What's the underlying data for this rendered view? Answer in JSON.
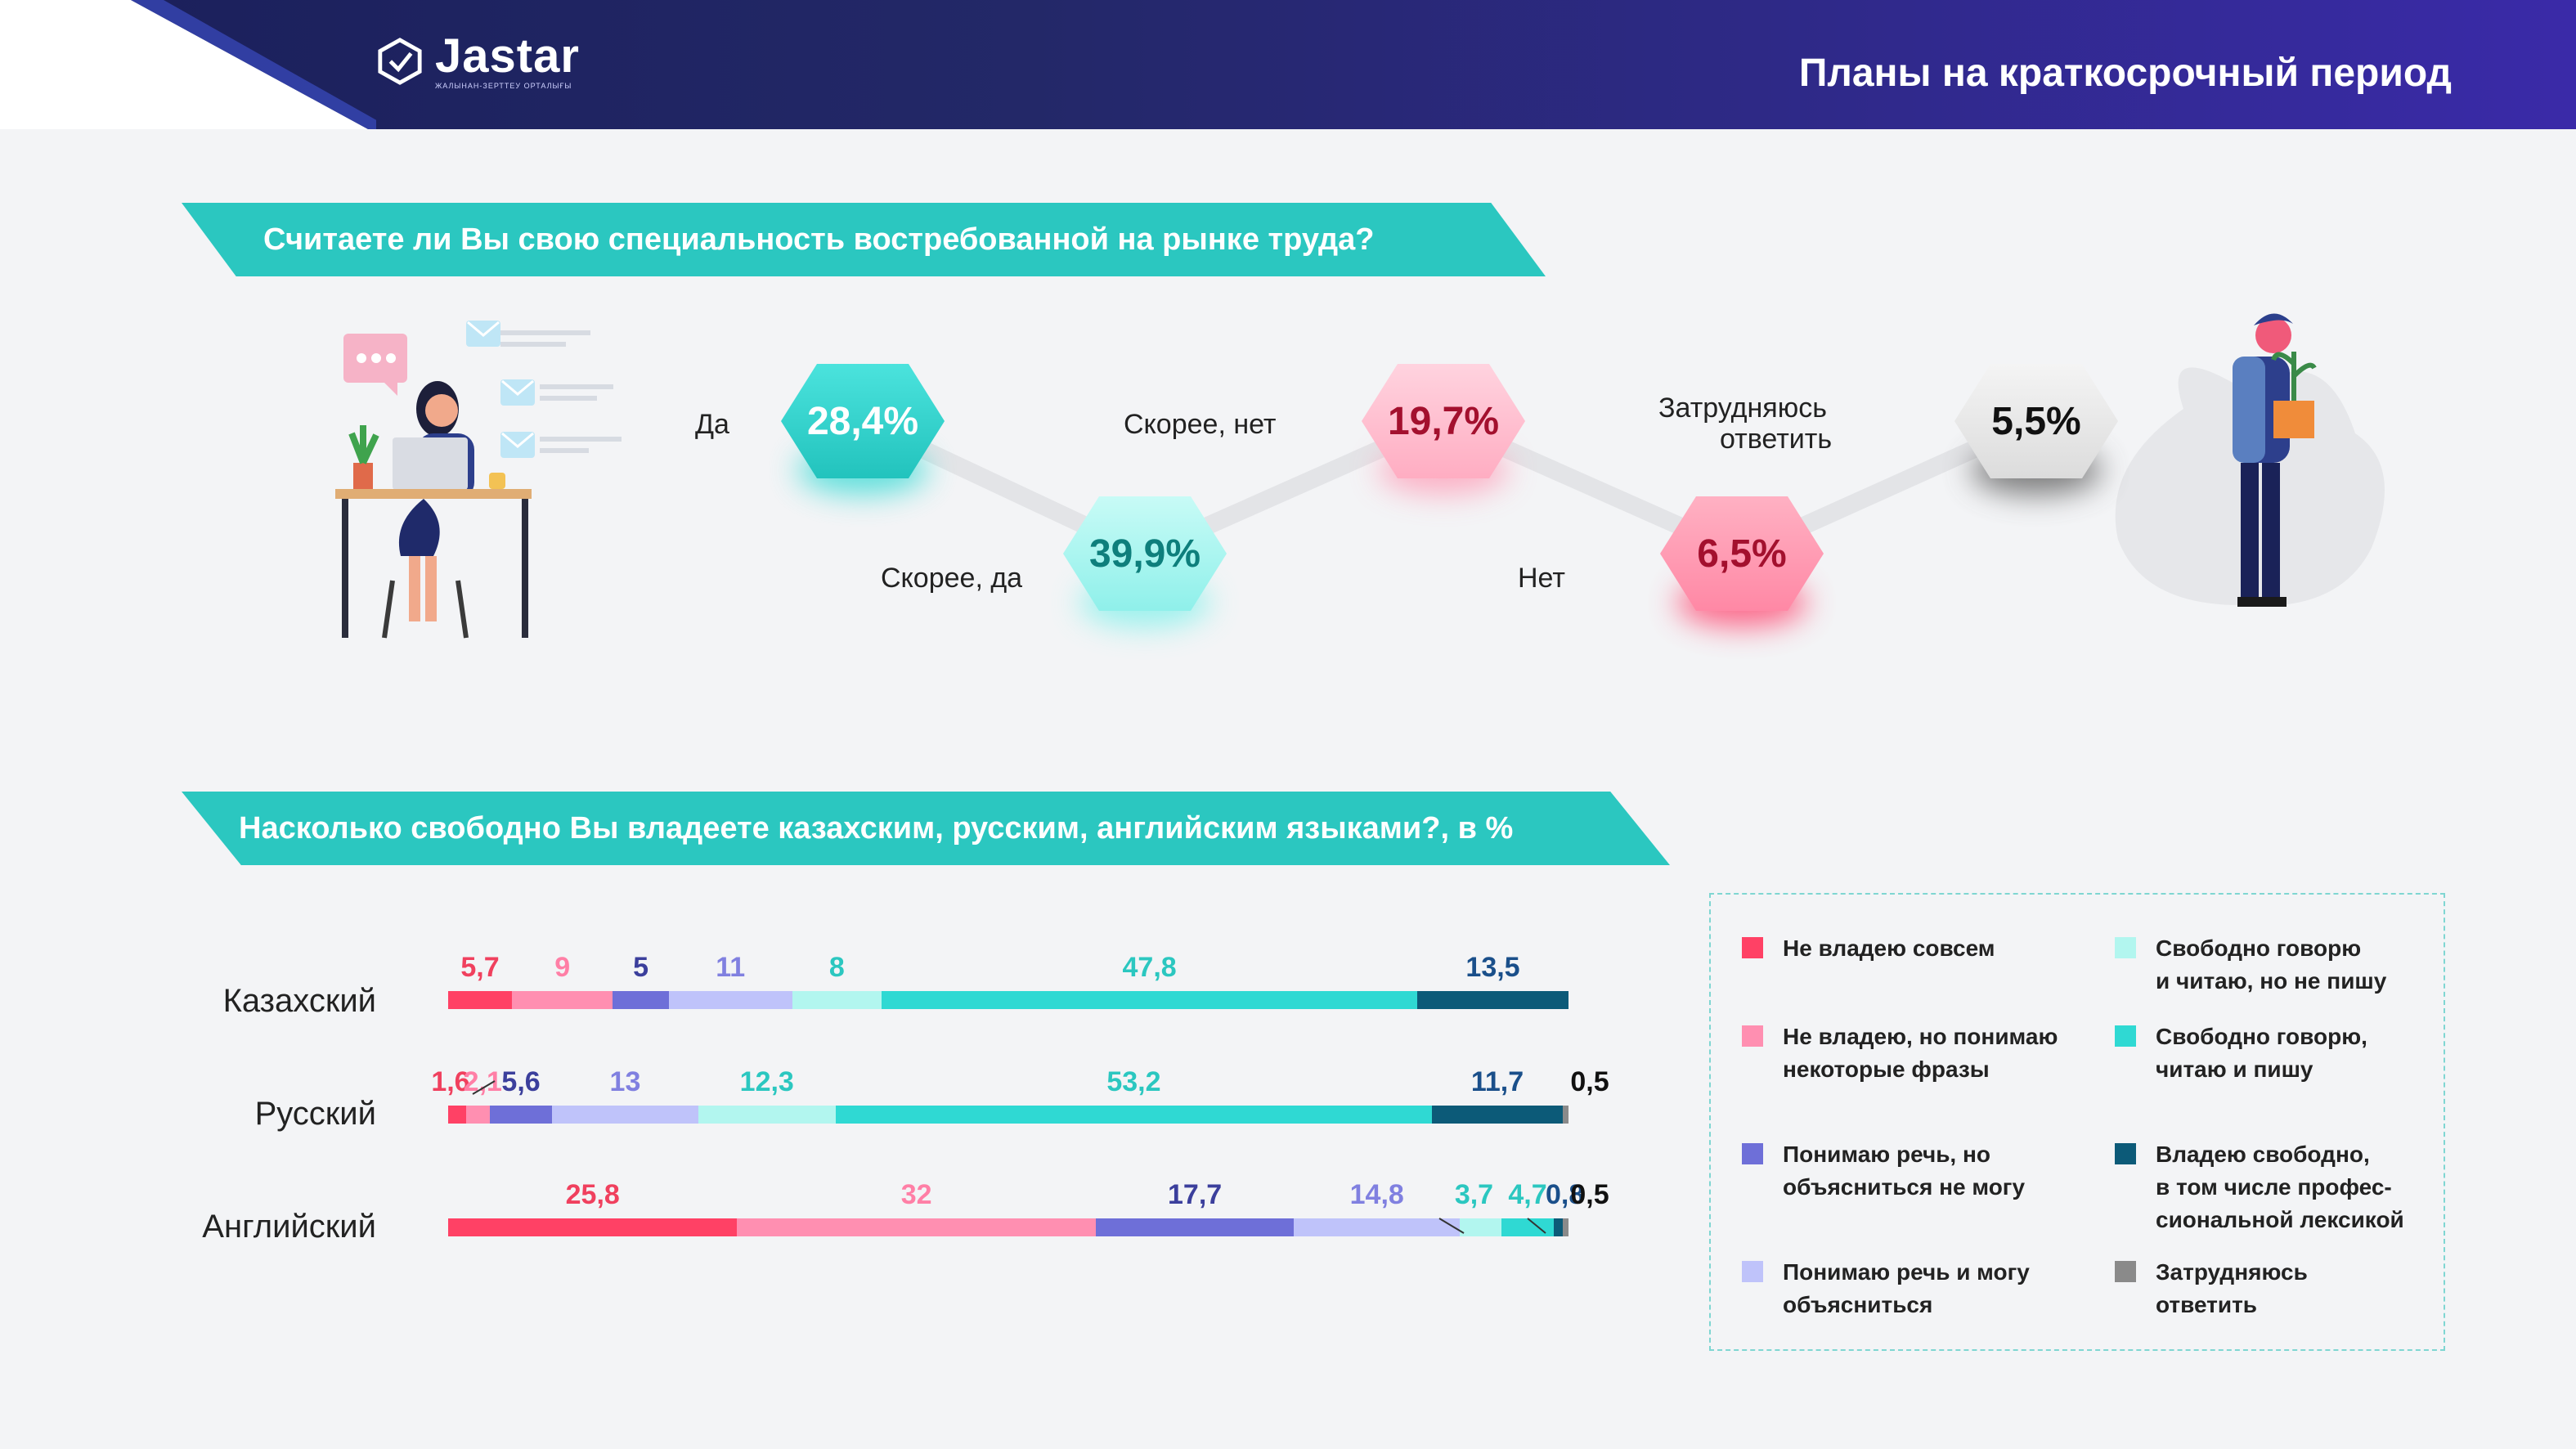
{
  "header": {
    "brand": "Jastar",
    "brand_sub": "ЖАЛЫНАН-ЗЕРТТЕУ ОРТАЛЫҒЫ",
    "title": "Планы на краткосрочный период"
  },
  "q1": {
    "question": "Считаете ли Вы свою специальность востребованной на рынке труда?",
    "labels": {
      "yes": "Да",
      "rather_yes": "Скорее, да",
      "rather_no": "Скорее, нет",
      "no": "Нет",
      "hard_line1": "Затрудняюсь",
      "hard_line2": "ответить"
    },
    "values": {
      "yes": "28,4%",
      "rather_yes": "39,9%",
      "rather_no": "19,7%",
      "no": "6,5%",
      "hard": "5,5%"
    }
  },
  "q2": {
    "question": "Насколько свободно Вы владеете казахским, русским, английским языками?, в %"
  },
  "legend": [
    {
      "label": "Не владею совсем",
      "color": "#ff4165"
    },
    {
      "label": "Не владею, но понимаю\nнекоторые фразы",
      "color": "#ff8fb1"
    },
    {
      "label": "Понимаю речь, но\nобъясниться не могу",
      "color": "#6e6fd8"
    },
    {
      "label": "Понимаю речь и могу\nобъясниться",
      "color": "#bfc3fa"
    },
    {
      "label": "Свободно говорю\nи читаю, но не пишу",
      "color": "#b2f6ef"
    },
    {
      "label": "Свободно говорю,\nчитаю и пишу",
      "color": "#2fd9d3"
    },
    {
      "label": "Владею свободно,\nв том числе профес-\nсиональной лексикой",
      "color": "#0c5a78"
    },
    {
      "label": "Затрудняюсь\nответить",
      "color": "#8a8a8a"
    }
  ],
  "chart_data": [
    {
      "type": "line",
      "title": "Считаете ли Вы свою специальность востребованной на рынке труда?",
      "categories": [
        "Да",
        "Скорее, да",
        "Скорее, нет",
        "Нет",
        "Затрудняюсь ответить"
      ],
      "values": [
        28.4,
        39.9,
        19.7,
        6.5,
        5.5
      ],
      "display_values": [
        "28,4%",
        "39,9%",
        "19,7%",
        "6,5%",
        "5,5%"
      ]
    },
    {
      "type": "bar",
      "orientation": "horizontal-stacked",
      "title": "Насколько свободно Вы владеете казахским, русским, английским языками?, в %",
      "series_names": [
        "Не владею совсем",
        "Не владею, но понимаю некоторые фразы",
        "Понимаю речь, но объясниться не могу",
        "Понимаю речь и могу объясниться",
        "Свободно говорю и читаю, но не пишу",
        "Свободно говорю, читаю и пишу",
        "Владею свободно, в том числе профессиональной лексикой",
        "Затрудняюсь ответить"
      ],
      "colors": [
        "#ff4165",
        "#ff8fb1",
        "#6e6fd8",
        "#bfc3fa",
        "#b2f6ef",
        "#2fd9d3",
        "#0c5a78",
        "#8a8a8a"
      ],
      "label_colors": [
        "#f0405e",
        "#ff7fa6",
        "#3b3f9c",
        "#8080e0",
        "#2bc7c0",
        "#2bc7c0",
        "#1a4f8a",
        "#111111"
      ],
      "rows": [
        {
          "name": "Казахский",
          "values": [
            5.7,
            9,
            5,
            11,
            8,
            47.8,
            13.5,
            0
          ],
          "labels": [
            "5,7",
            "9",
            "5",
            "11",
            "8",
            "47,8",
            "13,5",
            ""
          ]
        },
        {
          "name": "Русский",
          "values": [
            1.6,
            2.1,
            5.6,
            13,
            12.3,
            53.2,
            11.7,
            0.5
          ],
          "labels": [
            "1,6",
            "2,1",
            "5,6",
            "13",
            "12,3",
            "53,2",
            "11,7",
            "0,5"
          ]
        },
        {
          "name": "Английский",
          "values": [
            25.8,
            32,
            17.7,
            14.8,
            3.7,
            4.7,
            0.8,
            0.5
          ],
          "labels": [
            "25,8",
            "32",
            "17,7",
            "14,8",
            "3,7",
            "4,7",
            "0,8",
            "0,5"
          ]
        }
      ]
    }
  ]
}
